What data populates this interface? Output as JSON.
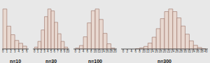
{
  "chart_data": [
    {
      "type": "histogram",
      "xlabel": "n=10",
      "bins": [
        0,
        1,
        2,
        3,
        4,
        5,
        6
      ],
      "values": [
        0.42,
        0.24,
        0.15,
        0.09,
        0.06,
        0.03
      ],
      "xlim": [
        -0.2,
        6.5
      ],
      "xticks": [
        0,
        1,
        2,
        3,
        4,
        5,
        6
      ],
      "ylim": [
        0,
        0.4704
      ],
      "tick_labels": "x",
      "color": "#e8d8d0"
    },
    {
      "type": "histogram",
      "xlabel": "n=30",
      "bins": [
        0,
        1,
        2,
        3,
        4,
        5,
        6,
        7,
        8,
        9,
        10
      ],
      "values": [
        0.01,
        0.04,
        0.1,
        0.17,
        0.21,
        0.2,
        0.14,
        0.08,
        0.04,
        0.01
      ],
      "xlim": [
        -0.5,
        10.5
      ],
      "xticks": [
        0,
        1,
        2,
        3,
        4,
        5,
        6,
        7,
        8,
        9,
        10
      ],
      "ylim": [
        0,
        0.2352
      ],
      "tick_labels": "x",
      "color": "#e8d8d0"
    },
    {
      "type": "histogram",
      "xlabel": "n=100",
      "bins": [
        0,
        2,
        4,
        6,
        8,
        10,
        12,
        14,
        16,
        18,
        20
      ],
      "values": [
        0.005,
        0.02,
        0.07,
        0.15,
        0.22,
        0.23,
        0.17,
        0.09,
        0.03,
        0.005
      ],
      "xlim": [
        -1,
        21
      ],
      "xticks": [
        0,
        2,
        4,
        6,
        8,
        10,
        12,
        14,
        16,
        18,
        20
      ],
      "ylim": [
        0,
        0.2576
      ],
      "tick_labels": "x",
      "color": "#e8d8d0"
    },
    {
      "type": "histogram",
      "xlabel": "n=300",
      "bins": [
        0,
        2,
        4,
        6,
        8,
        10,
        12,
        14,
        16,
        18,
        20,
        22,
        24,
        26,
        28,
        30,
        32,
        34,
        36,
        38,
        40
      ],
      "values": [
        0.0,
        0.0,
        0.0,
        0.001,
        0.003,
        0.007,
        0.016,
        0.032,
        0.055,
        0.082,
        0.101,
        0.108,
        0.101,
        0.084,
        0.062,
        0.04,
        0.022,
        0.01,
        0.004,
        0.001
      ],
      "xlim": [
        -1,
        41
      ],
      "xticks": [
        0,
        2,
        4,
        6,
        8,
        10,
        12,
        14,
        16,
        18,
        20,
        22,
        24,
        26,
        28,
        30,
        32,
        34,
        36,
        38,
        40
      ],
      "ylim": [
        0,
        0.12096
      ],
      "tick_labels": "x",
      "color": "#e8d8d0"
    }
  ]
}
